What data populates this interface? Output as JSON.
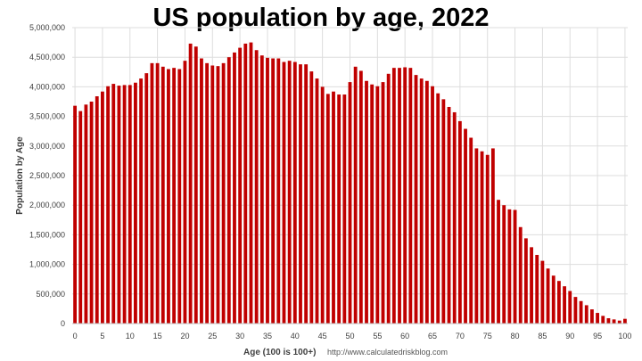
{
  "chart_data": {
    "type": "bar",
    "title": "US population by age, 2022",
    "xlabel": "Age (100 is 100+)",
    "ylabel": "Population by Age",
    "source": "http://www.calculatedriskblog.com",
    "ylim": [
      0,
      5000000
    ],
    "yticks": [
      0,
      500000,
      1000000,
      1500000,
      2000000,
      2500000,
      3000000,
      3500000,
      4000000,
      4500000,
      5000000
    ],
    "ytick_labels": [
      "0",
      "500,000",
      "1,000,000",
      "1,500,000",
      "2,000,000",
      "2,500,000",
      "3,000,000",
      "3,500,000",
      "4,000,000",
      "4,500,000",
      "5,000,000"
    ],
    "xticks": [
      0,
      5,
      10,
      15,
      20,
      25,
      30,
      35,
      40,
      45,
      50,
      55,
      60,
      65,
      70,
      75,
      80,
      85,
      90,
      95,
      100
    ],
    "xtick_labels": [
      "0",
      "5",
      "10",
      "15",
      "20",
      "25",
      "30",
      "35",
      "40",
      "45",
      "50",
      "55",
      "60",
      "65",
      "70",
      "75",
      "80",
      "85",
      "90",
      "95",
      "100"
    ],
    "grid": true,
    "bar_color": "#c00000",
    "categories": [
      0,
      1,
      2,
      3,
      4,
      5,
      6,
      7,
      8,
      9,
      10,
      11,
      12,
      13,
      14,
      15,
      16,
      17,
      18,
      19,
      20,
      21,
      22,
      23,
      24,
      25,
      26,
      27,
      28,
      29,
      30,
      31,
      32,
      33,
      34,
      35,
      36,
      37,
      38,
      39,
      40,
      41,
      42,
      43,
      44,
      45,
      46,
      47,
      48,
      49,
      50,
      51,
      52,
      53,
      54,
      55,
      56,
      57,
      58,
      59,
      60,
      61,
      62,
      63,
      64,
      65,
      66,
      67,
      68,
      69,
      70,
      71,
      72,
      73,
      74,
      75,
      76,
      77,
      78,
      79,
      80,
      81,
      82,
      83,
      84,
      85,
      86,
      87,
      88,
      89,
      90,
      91,
      92,
      93,
      94,
      95,
      96,
      97,
      98,
      99,
      100
    ],
    "values": [
      3680000,
      3590000,
      3700000,
      3750000,
      3840000,
      3920000,
      4010000,
      4050000,
      4020000,
      4030000,
      4030000,
      4070000,
      4140000,
      4230000,
      4400000,
      4400000,
      4340000,
      4300000,
      4320000,
      4300000,
      4440000,
      4730000,
      4680000,
      4480000,
      4400000,
      4360000,
      4350000,
      4400000,
      4500000,
      4580000,
      4660000,
      4730000,
      4750000,
      4620000,
      4530000,
      4490000,
      4480000,
      4480000,
      4420000,
      4440000,
      4420000,
      4380000,
      4380000,
      4260000,
      4140000,
      4000000,
      3880000,
      3920000,
      3870000,
      3870000,
      4080000,
      4340000,
      4270000,
      4100000,
      4040000,
      4010000,
      4080000,
      4220000,
      4320000,
      4320000,
      4330000,
      4320000,
      4200000,
      4140000,
      4100000,
      4010000,
      3890000,
      3790000,
      3660000,
      3570000,
      3420000,
      3290000,
      3140000,
      2960000,
      2910000,
      2850000,
      2960000,
      2090000,
      2000000,
      1930000,
      1920000,
      1630000,
      1440000,
      1290000,
      1160000,
      1060000,
      930000,
      810000,
      720000,
      630000,
      550000,
      450000,
      380000,
      310000,
      240000,
      180000,
      130000,
      90000,
      70000,
      50000,
      80000
    ]
  }
}
